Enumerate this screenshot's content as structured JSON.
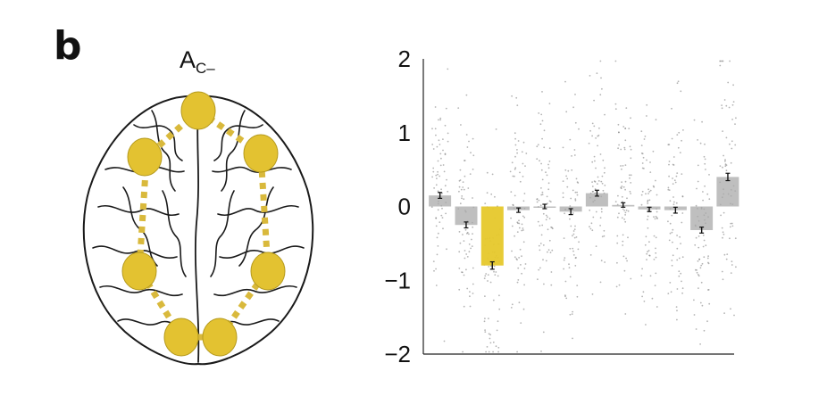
{
  "panel_label": "b",
  "brain_title": {
    "main": "A",
    "sub": "C–"
  },
  "colors": {
    "highlight": "#e6c82b",
    "bar": "#aaaaaa",
    "node": "#e3c231",
    "edge": "#d9b93c",
    "points": "#777777"
  },
  "chart_data": {
    "type": "bar",
    "ylim": [
      -2,
      2
    ],
    "yticks": [
      2,
      1,
      0,
      -1,
      -2
    ],
    "ytick_labels": [
      "2",
      "1",
      "0",
      "−1",
      "−2"
    ],
    "values": [
      0.15,
      -0.25,
      -0.8,
      -0.05,
      0.0,
      -0.07,
      0.18,
      0.02,
      -0.04,
      -0.05,
      -0.32,
      0.4
    ],
    "errors": [
      0.04,
      0.04,
      0.05,
      0.03,
      0.03,
      0.04,
      0.04,
      0.03,
      0.03,
      0.04,
      0.04,
      0.05
    ],
    "highlight_index": 2,
    "grid": false,
    "individual_points": true
  }
}
